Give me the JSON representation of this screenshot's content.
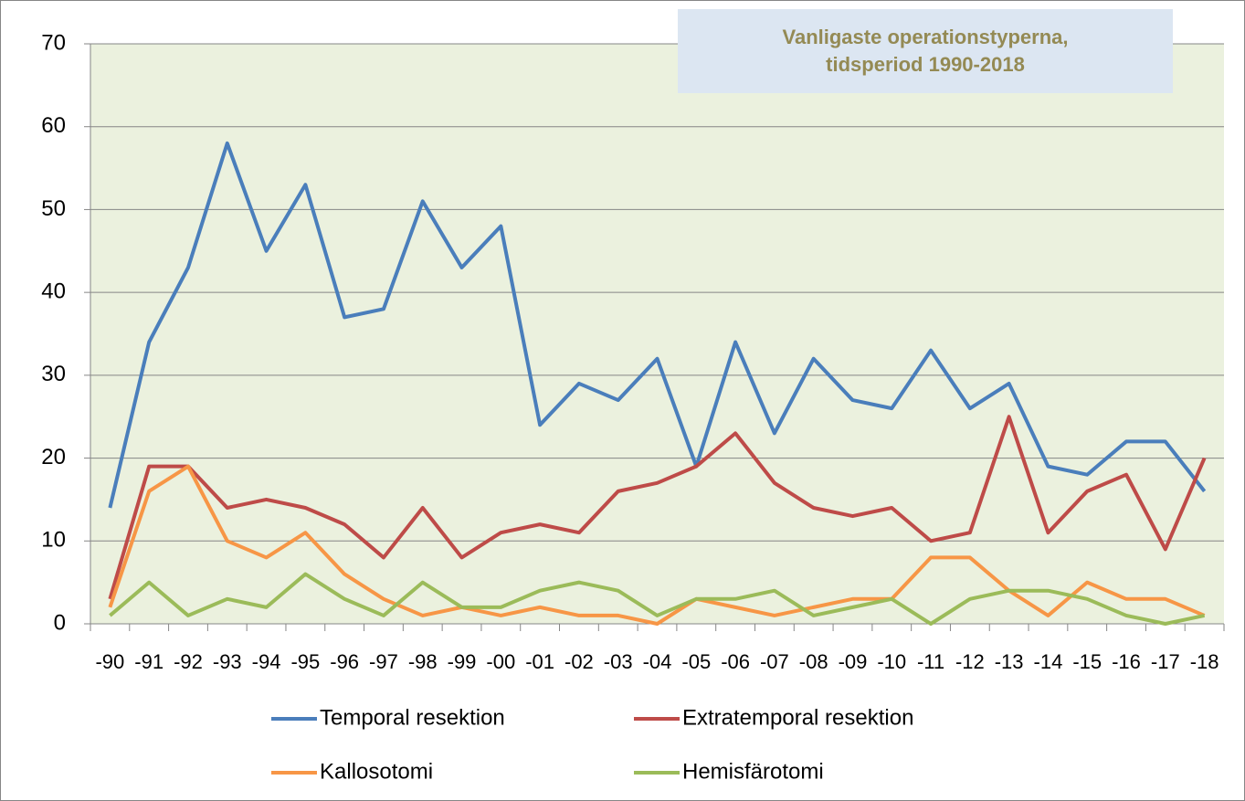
{
  "chart_data": {
    "type": "line",
    "title": [
      "Vanligaste operationstyperna,",
      "tidsperiod 1990-2018"
    ],
    "categories": [
      "-90",
      "-91",
      "-92",
      "-93",
      "-94",
      "-95",
      "-96",
      "-97",
      "-98",
      "-99",
      "-00",
      "-01",
      "-02",
      "-03",
      "-04",
      "-05",
      "-06",
      "-07",
      "-08",
      "-09",
      "-10",
      "-11",
      "-12",
      "-13",
      "-14",
      "-15",
      "-16",
      "-17",
      "-18"
    ],
    "series": [
      {
        "name": "Temporal resektion",
        "color": "#4a7ebb",
        "values": [
          14,
          34,
          43,
          58,
          45,
          53,
          37,
          38,
          51,
          43,
          48,
          24,
          29,
          27,
          32,
          19,
          34,
          23,
          32,
          27,
          26,
          33,
          26,
          29,
          19,
          18,
          22,
          22,
          16
        ]
      },
      {
        "name": "Extratemporal resektion",
        "color": "#be4b48",
        "values": [
          3,
          19,
          19,
          14,
          15,
          14,
          12,
          8,
          14,
          8,
          11,
          12,
          11,
          16,
          17,
          19,
          23,
          17,
          14,
          13,
          14,
          10,
          11,
          25,
          11,
          16,
          18,
          9,
          20
        ]
      },
      {
        "name": "Kallosotomi",
        "color": "#f79646",
        "values": [
          2,
          16,
          19,
          10,
          8,
          11,
          6,
          3,
          1,
          2,
          1,
          2,
          1,
          1,
          0,
          3,
          2,
          1,
          2,
          3,
          3,
          8,
          8,
          4,
          1,
          5,
          3,
          3,
          1
        ]
      },
      {
        "name": "Hemisfärotomi",
        "color": "#9bbb59",
        "values": [
          1,
          5,
          1,
          3,
          2,
          6,
          3,
          1,
          5,
          2,
          2,
          4,
          5,
          4,
          1,
          3,
          3,
          4,
          1,
          2,
          3,
          0,
          3,
          4,
          4,
          3,
          1,
          0,
          1
        ]
      }
    ],
    "ylim": [
      0,
      70
    ],
    "yticks": [
      0,
      10,
      20,
      30,
      40,
      50,
      60,
      70
    ],
    "grid": true
  }
}
